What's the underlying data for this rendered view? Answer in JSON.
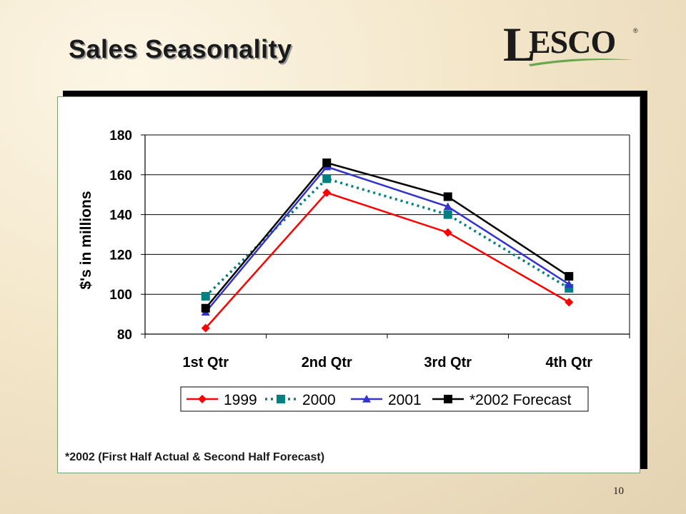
{
  "slide": {
    "title": "Sales Seasonality",
    "logo_text_initial": "L",
    "logo_text_rest": "ESCO",
    "logo_registered": "®",
    "page_number": "10",
    "footnote": "*2002 (First Half Actual & Second Half Forecast)"
  },
  "colors": {
    "accent_green": "#6aa84f",
    "series_1999": "#ff0000",
    "series_2000": "#008080",
    "series_2001": "#3333cc",
    "series_2002": "#000000"
  },
  "chart_data": {
    "type": "line",
    "title": "",
    "xlabel": "",
    "ylabel": "$'s in millions",
    "categories": [
      "1st Qtr",
      "2nd Qtr",
      "3rd Qtr",
      "4th Qtr"
    ],
    "ylim": [
      80,
      180
    ],
    "yticks": [
      80,
      100,
      120,
      140,
      160,
      180
    ],
    "grid": "horizontal major",
    "legend_position": "bottom",
    "series": [
      {
        "name": "1999",
        "values": [
          83,
          151,
          131,
          96
        ],
        "color": "#ff0000",
        "marker": "diamond",
        "dash": "solid"
      },
      {
        "name": "2000",
        "values": [
          99,
          158,
          140,
          103
        ],
        "color": "#008080",
        "marker": "square",
        "dash": "dotted"
      },
      {
        "name": "2001",
        "values": [
          91,
          164,
          144,
          105
        ],
        "color": "#3333cc",
        "marker": "triangle",
        "dash": "solid"
      },
      {
        "name": "*2002 Forecast",
        "values": [
          93,
          166,
          149,
          109
        ],
        "color": "#000000",
        "marker": "square",
        "dash": "solid"
      }
    ]
  }
}
